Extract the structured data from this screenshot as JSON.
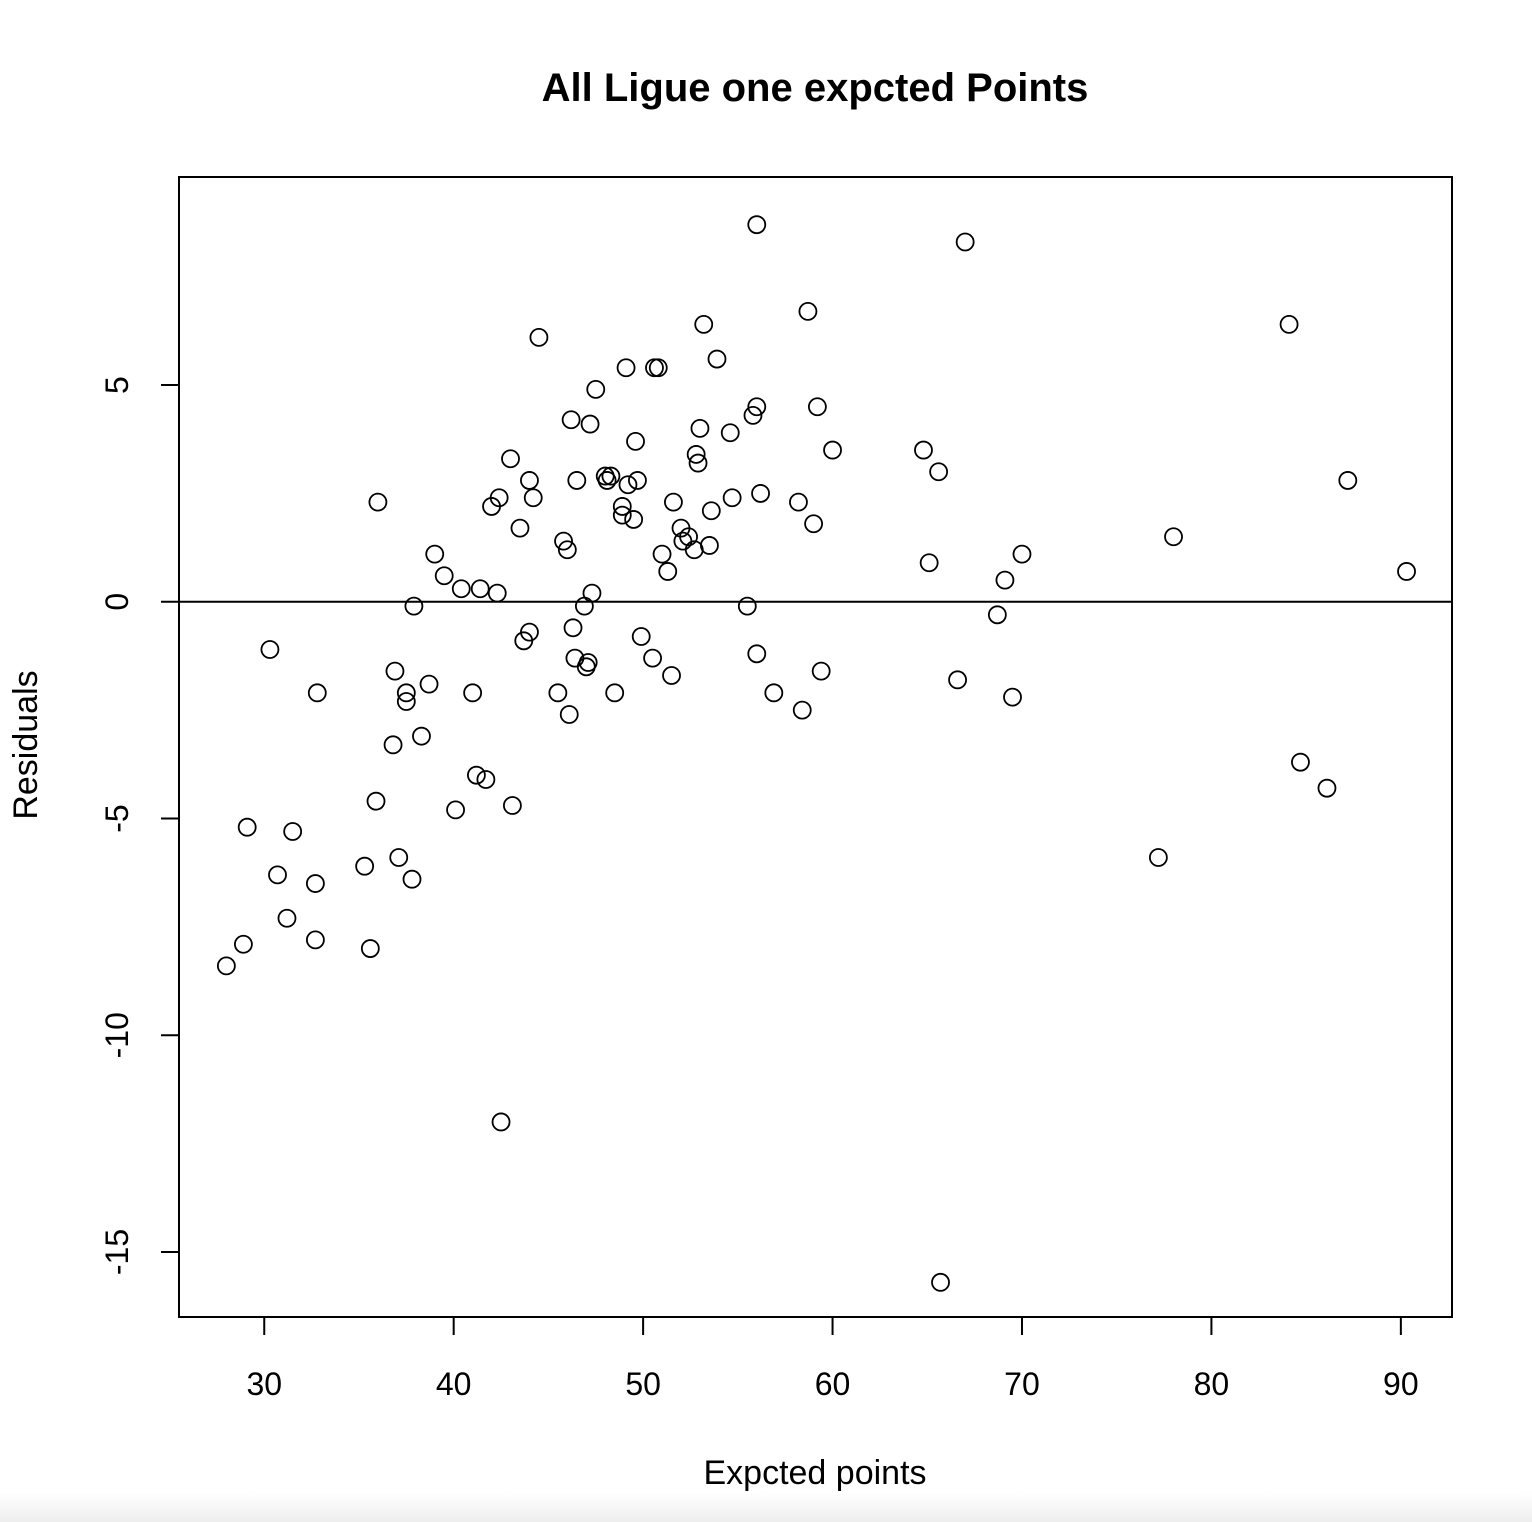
{
  "chart_data": {
    "type": "scatter",
    "title": "All Ligue one expcted Points",
    "xlabel": "Expcted points",
    "ylabel": "Residuals",
    "xlim": [
      25.5,
      92.7
    ],
    "ylim": [
      -16.5,
      9.8
    ],
    "xticks": [
      30,
      40,
      50,
      60,
      70,
      80,
      90
    ],
    "yticks": [
      -15,
      -10,
      -5,
      0,
      5
    ],
    "reference_line": {
      "y": 0
    },
    "marker": "open-circle",
    "grid": false,
    "points": [
      {
        "x": 28.0,
        "y": -8.4
      },
      {
        "x": 28.9,
        "y": -7.9
      },
      {
        "x": 29.1,
        "y": -5.2
      },
      {
        "x": 30.3,
        "y": -1.1
      },
      {
        "x": 30.7,
        "y": -6.3
      },
      {
        "x": 31.2,
        "y": -7.3
      },
      {
        "x": 31.5,
        "y": -5.3
      },
      {
        "x": 32.7,
        "y": -6.5
      },
      {
        "x": 32.7,
        "y": -7.8
      },
      {
        "x": 32.8,
        "y": -2.1
      },
      {
        "x": 35.3,
        "y": -6.1
      },
      {
        "x": 35.6,
        "y": -8.0
      },
      {
        "x": 35.9,
        "y": -4.6
      },
      {
        "x": 36.0,
        "y": 2.3
      },
      {
        "x": 36.8,
        "y": -3.3
      },
      {
        "x": 36.9,
        "y": -1.6
      },
      {
        "x": 37.1,
        "y": -5.9
      },
      {
        "x": 37.5,
        "y": -2.1
      },
      {
        "x": 37.5,
        "y": -2.3
      },
      {
        "x": 37.8,
        "y": -6.4
      },
      {
        "x": 37.9,
        "y": -0.1
      },
      {
        "x": 38.3,
        "y": -3.1
      },
      {
        "x": 38.7,
        "y": -1.9
      },
      {
        "x": 39.0,
        "y": 1.1
      },
      {
        "x": 39.5,
        "y": 0.6
      },
      {
        "x": 40.1,
        "y": -4.8
      },
      {
        "x": 40.4,
        "y": 0.3
      },
      {
        "x": 41.0,
        "y": -2.1
      },
      {
        "x": 41.2,
        "y": -4.0
      },
      {
        "x": 41.4,
        "y": 0.3
      },
      {
        "x": 41.7,
        "y": -4.1
      },
      {
        "x": 42.0,
        "y": 2.2
      },
      {
        "x": 42.3,
        "y": 0.2
      },
      {
        "x": 42.4,
        "y": 2.4
      },
      {
        "x": 42.5,
        "y": -12.0
      },
      {
        "x": 43.0,
        "y": 3.3
      },
      {
        "x": 43.1,
        "y": -4.7
      },
      {
        "x": 43.5,
        "y": 1.7
      },
      {
        "x": 43.7,
        "y": -0.9
      },
      {
        "x": 44.0,
        "y": 2.8
      },
      {
        "x": 44.0,
        "y": -0.7
      },
      {
        "x": 44.2,
        "y": 2.4
      },
      {
        "x": 44.5,
        "y": 6.1
      },
      {
        "x": 45.5,
        "y": -2.1
      },
      {
        "x": 45.8,
        "y": 1.4
      },
      {
        "x": 46.0,
        "y": 1.2
      },
      {
        "x": 46.1,
        "y": -2.6
      },
      {
        "x": 46.2,
        "y": 4.2
      },
      {
        "x": 46.3,
        "y": -0.6
      },
      {
        "x": 46.4,
        "y": -1.3
      },
      {
        "x": 46.5,
        "y": 2.8
      },
      {
        "x": 46.9,
        "y": -0.1
      },
      {
        "x": 47.0,
        "y": -1.5
      },
      {
        "x": 47.1,
        "y": -1.4
      },
      {
        "x": 47.2,
        "y": 4.1
      },
      {
        "x": 47.3,
        "y": 0.2
      },
      {
        "x": 47.5,
        "y": 4.9
      },
      {
        "x": 48.0,
        "y": 2.9
      },
      {
        "x": 48.1,
        "y": 2.8
      },
      {
        "x": 48.3,
        "y": 2.9
      },
      {
        "x": 48.5,
        "y": -2.1
      },
      {
        "x": 48.9,
        "y": 2.2
      },
      {
        "x": 48.9,
        "y": 2.0
      },
      {
        "x": 49.1,
        "y": 5.4
      },
      {
        "x": 49.2,
        "y": 2.7
      },
      {
        "x": 49.5,
        "y": 1.9
      },
      {
        "x": 49.6,
        "y": 3.7
      },
      {
        "x": 49.7,
        "y": 2.8
      },
      {
        "x": 49.9,
        "y": -0.8
      },
      {
        "x": 50.5,
        "y": -1.3
      },
      {
        "x": 50.6,
        "y": 5.4
      },
      {
        "x": 50.8,
        "y": 5.4
      },
      {
        "x": 51.0,
        "y": 1.1
      },
      {
        "x": 51.3,
        "y": 0.7
      },
      {
        "x": 51.5,
        "y": -1.7
      },
      {
        "x": 51.6,
        "y": 2.3
      },
      {
        "x": 52.0,
        "y": 1.7
      },
      {
        "x": 52.1,
        "y": 1.4
      },
      {
        "x": 52.4,
        "y": 1.5
      },
      {
        "x": 52.7,
        "y": 1.2
      },
      {
        "x": 52.8,
        "y": 3.4
      },
      {
        "x": 52.9,
        "y": 3.2
      },
      {
        "x": 53.0,
        "y": 4.0
      },
      {
        "x": 53.2,
        "y": 6.4
      },
      {
        "x": 53.5,
        "y": 1.3
      },
      {
        "x": 53.6,
        "y": 2.1
      },
      {
        "x": 53.9,
        "y": 5.6
      },
      {
        "x": 54.6,
        "y": 3.9
      },
      {
        "x": 54.7,
        "y": 2.4
      },
      {
        "x": 55.5,
        "y": -0.1
      },
      {
        "x": 55.8,
        "y": 4.3
      },
      {
        "x": 56.0,
        "y": 8.7
      },
      {
        "x": 56.0,
        "y": 4.5
      },
      {
        "x": 56.0,
        "y": -1.2
      },
      {
        "x": 56.2,
        "y": 2.5
      },
      {
        "x": 56.9,
        "y": -2.1
      },
      {
        "x": 58.2,
        "y": 2.3
      },
      {
        "x": 58.4,
        "y": -2.5
      },
      {
        "x": 58.7,
        "y": 6.7
      },
      {
        "x": 59.0,
        "y": 1.8
      },
      {
        "x": 59.2,
        "y": 4.5
      },
      {
        "x": 59.4,
        "y": -1.6
      },
      {
        "x": 60.0,
        "y": 3.5
      },
      {
        "x": 64.8,
        "y": 3.5
      },
      {
        "x": 65.1,
        "y": 0.9
      },
      {
        "x": 65.6,
        "y": 3.0
      },
      {
        "x": 65.7,
        "y": -15.7
      },
      {
        "x": 66.6,
        "y": -1.8
      },
      {
        "x": 67.0,
        "y": 8.3
      },
      {
        "x": 68.7,
        "y": -0.3
      },
      {
        "x": 69.1,
        "y": 0.5
      },
      {
        "x": 69.5,
        "y": -2.2
      },
      {
        "x": 70.0,
        "y": 1.1
      },
      {
        "x": 77.2,
        "y": -5.9
      },
      {
        "x": 78.0,
        "y": 1.5
      },
      {
        "x": 84.1,
        "y": 6.4
      },
      {
        "x": 84.7,
        "y": -3.7
      },
      {
        "x": 86.1,
        "y": -4.3
      },
      {
        "x": 87.2,
        "y": 2.8
      },
      {
        "x": 90.3,
        "y": 0.7
      }
    ]
  }
}
